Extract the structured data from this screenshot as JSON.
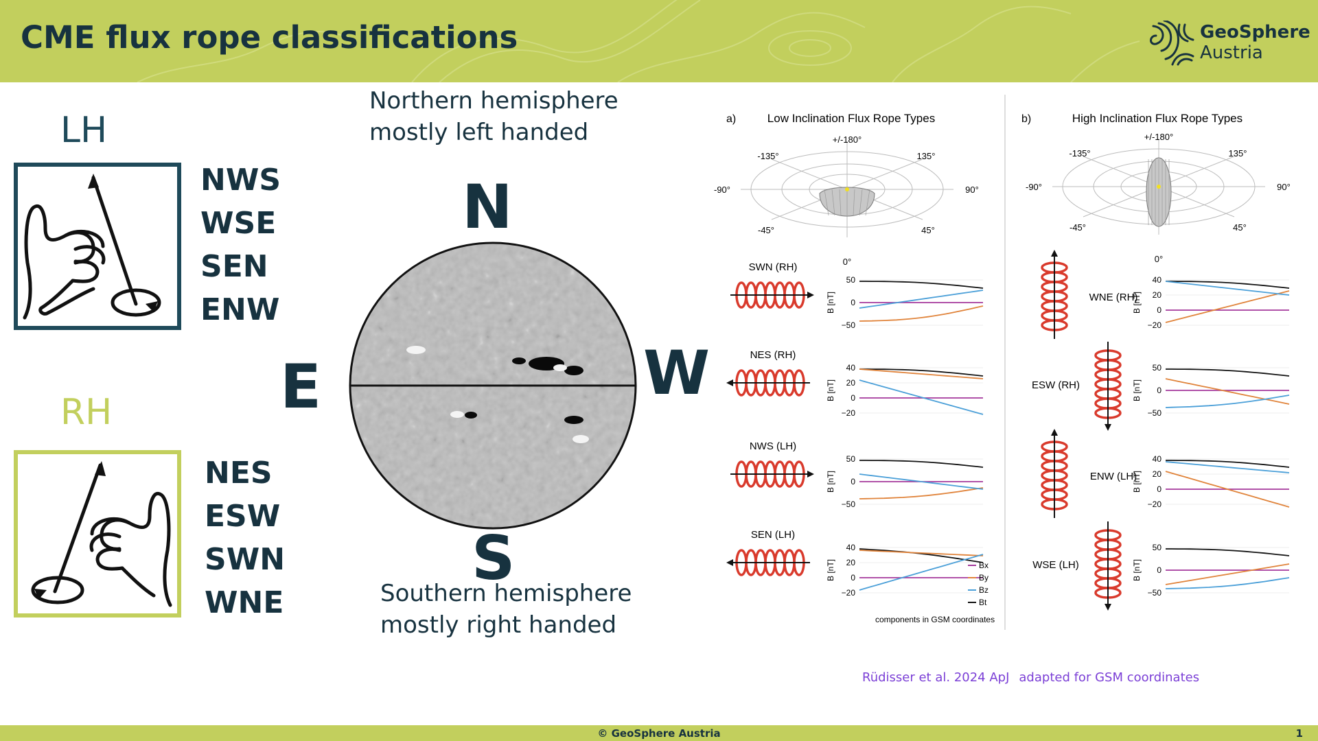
{
  "header": {
    "title": "CME flux rope classifications",
    "logo_line1": "GeoSphere",
    "logo_line2": "Austria",
    "background": "#c2cf5d"
  },
  "left": {
    "lh": {
      "label": "LH",
      "codes": [
        "NWS",
        "WSE",
        "SEN",
        "ENW"
      ],
      "color": "#1f4a5a"
    },
    "rh": {
      "label": "RH",
      "codes": [
        "NES",
        "ESW",
        "SWN",
        "WNE"
      ],
      "color": "#c2cf5d"
    }
  },
  "center": {
    "north_line1": "Northern hemisphere",
    "north_line2": "mostly left handed",
    "south_line1": "Southern hemisphere",
    "south_line2": "mostly right handed",
    "compass": {
      "n": "N",
      "s": "S",
      "e": "E",
      "w": "W"
    }
  },
  "right": {
    "panel_a": {
      "letter": "a)",
      "title": "Low Inclination  Flux Rope Types"
    },
    "panel_b": {
      "letter": "b)",
      "title": "High Inclination  Flux Rope Types"
    },
    "polar_labels": {
      "top": "+/-180°",
      "tl": "-135°",
      "tr": "135°",
      "left": "-90°",
      "right": "90°",
      "bl": "-45°",
      "br": "45°",
      "bottom": "0°"
    },
    "a_rows": [
      {
        "label": "SWN (RH)",
        "ticks": [
          "50",
          "0",
          "−50"
        ]
      },
      {
        "label": "NES (RH)",
        "ticks": [
          "40",
          "20",
          "0",
          "−20"
        ]
      },
      {
        "label": "NWS (LH)",
        "ticks": [
          "50",
          "0",
          "−50"
        ]
      },
      {
        "label": "SEN (LH)",
        "ticks": [
          "40",
          "20",
          "0",
          "−20"
        ]
      }
    ],
    "b_rows": [
      {
        "label": "WNE (RH)",
        "ticks": [
          "40",
          "20",
          "0",
          "−20"
        ]
      },
      {
        "label": "ESW (RH)",
        "ticks": [
          "50",
          "0",
          "−50"
        ]
      },
      {
        "label": "ENW (LH)",
        "ticks": [
          "40",
          "20",
          "0",
          "−20"
        ]
      },
      {
        "label": "WSE (LH)",
        "ticks": [
          "50",
          "0",
          "−50"
        ]
      }
    ],
    "ylabel": "B [nT]",
    "legend": [
      "Bx",
      "By",
      "Bz",
      "Bt"
    ],
    "note": "components in GSM coordinates",
    "colors": {
      "bx": "#a4389b",
      "by": "#e0833a",
      "bz": "#4a9fd8",
      "bt": "#111111",
      "rope": "#d93a2c"
    }
  },
  "citation": {
    "ref": "Rüdisser et al. 2024 ApJ",
    "note": "adapted for GSM coordinates"
  },
  "footer": {
    "copyright": "© GeoSphere Austria",
    "page": "1"
  }
}
